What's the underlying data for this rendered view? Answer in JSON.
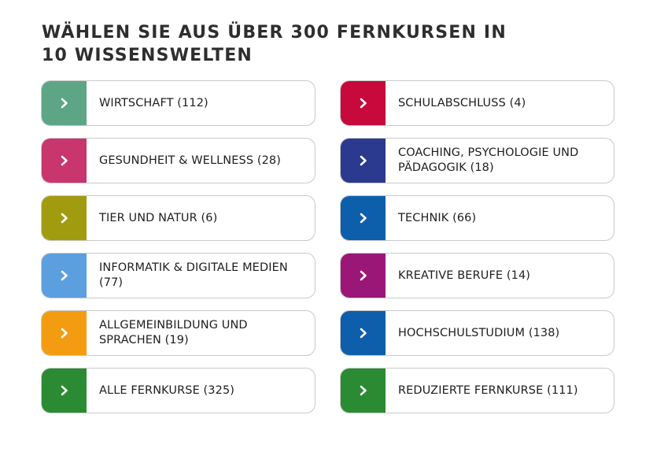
{
  "heading": {
    "line1": "WÄHLEN SIE AUS ÜBER 300 FERNKURSEN IN",
    "line2": "10 WISSENSWELTEN"
  },
  "categories": [
    {
      "label": "WIRTSCHAFT (112)",
      "color": "#5ca686",
      "icon": "chevron-right-icon"
    },
    {
      "label": "SCHULABSCHLUSS (4)",
      "color": "#c8093c",
      "icon": "chevron-right-icon"
    },
    {
      "label": "GESUNDHEIT & WELLNESS (28)",
      "color": "#c9356d",
      "icon": "chevron-right-icon"
    },
    {
      "label": "COACHING, PSYCHOLOGIE UND PÄDAGOGIK (18)",
      "color": "#2b3a8f",
      "icon": "chevron-right-icon"
    },
    {
      "label": "TIER UND NATUR (6)",
      "color": "#a19c0f",
      "icon": "chevron-right-icon"
    },
    {
      "label": "TECHNIK (66)",
      "color": "#0d5fab",
      "icon": "chevron-right-icon"
    },
    {
      "label": "INFORMATIK & DIGITALE MEDIEN (77)",
      "color": "#5c9fdf",
      "icon": "chevron-right-icon"
    },
    {
      "label": "KREATIVE BERUFE (14)",
      "color": "#9a1778",
      "icon": "chevron-right-icon"
    },
    {
      "label": "ALLGEMEINBILDUNG UND SPRACHEN (19)",
      "color": "#f39c12",
      "icon": "chevron-right-icon"
    },
    {
      "label": "HOCHSCHULSTUDIUM (138)",
      "color": "#0d5fab",
      "icon": "chevron-right-icon"
    },
    {
      "label": "ALLE FERNKURSE (325)",
      "color": "#2a8b32",
      "icon": "chevron-right-icon"
    },
    {
      "label": "REDUZIERTE FERNKURSE (111)",
      "color": "#2a8b32",
      "icon": "chevron-right-icon"
    }
  ]
}
